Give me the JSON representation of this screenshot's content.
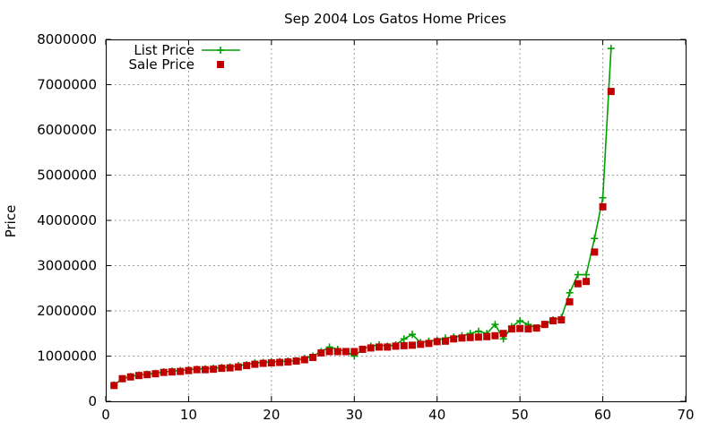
{
  "chart_data": {
    "type": "line",
    "title": "Sep 2004 Los Gatos Home Prices",
    "xlabel": "",
    "ylabel": "Price",
    "xlim": [
      0,
      70
    ],
    "ylim": [
      0,
      8000000
    ],
    "x_ticks": [
      0,
      10,
      20,
      30,
      40,
      50,
      60,
      70
    ],
    "y_ticks": [
      0,
      1000000,
      2000000,
      3000000,
      4000000,
      5000000,
      6000000,
      7000000,
      8000000
    ],
    "grid": true,
    "legend_position": "top-left",
    "x": [
      1,
      2,
      3,
      4,
      5,
      6,
      7,
      8,
      9,
      10,
      11,
      12,
      13,
      14,
      15,
      16,
      17,
      18,
      19,
      20,
      21,
      22,
      23,
      24,
      25,
      26,
      27,
      28,
      29,
      30,
      31,
      32,
      33,
      34,
      35,
      36,
      37,
      38,
      39,
      40,
      41,
      42,
      43,
      44,
      45,
      46,
      47,
      48,
      49,
      50,
      51,
      52,
      53,
      54,
      55,
      56,
      57,
      58,
      59,
      60,
      61
    ],
    "series": [
      {
        "name": "List Price",
        "color": "#00a000",
        "marker": "plus",
        "values": [
          360000,
          500000,
          550000,
          580000,
          600000,
          620000,
          650000,
          670000,
          680000,
          700000,
          710000,
          720000,
          730000,
          750000,
          760000,
          790000,
          810000,
          850000,
          860000,
          870000,
          880000,
          890000,
          900000,
          950000,
          1000000,
          1100000,
          1200000,
          1150000,
          1100000,
          1000000,
          1150000,
          1220000,
          1250000,
          1220000,
          1250000,
          1380000,
          1480000,
          1300000,
          1330000,
          1350000,
          1400000,
          1420000,
          1450000,
          1500000,
          1550000,
          1500000,
          1700000,
          1380000,
          1650000,
          1780000,
          1700000,
          1620000,
          1700000,
          1800000,
          1850000,
          2400000,
          2800000,
          2800000,
          3600000,
          4500000,
          7800000
        ]
      },
      {
        "name": "Sale Price",
        "color": "#c00000",
        "marker": "square",
        "values": [
          350000,
          500000,
          540000,
          570000,
          590000,
          610000,
          640000,
          650000,
          660000,
          680000,
          700000,
          700000,
          710000,
          730000,
          740000,
          760000,
          790000,
          820000,
          840000,
          850000,
          860000,
          870000,
          890000,
          920000,
          970000,
          1070000,
          1100000,
          1100000,
          1100000,
          1100000,
          1150000,
          1180000,
          1200000,
          1200000,
          1220000,
          1230000,
          1240000,
          1260000,
          1280000,
          1320000,
          1330000,
          1380000,
          1400000,
          1410000,
          1420000,
          1430000,
          1450000,
          1500000,
          1600000,
          1610000,
          1600000,
          1620000,
          1700000,
          1780000,
          1800000,
          2200000,
          2600000,
          2650000,
          3300000,
          4300000,
          6850000
        ]
      }
    ]
  }
}
